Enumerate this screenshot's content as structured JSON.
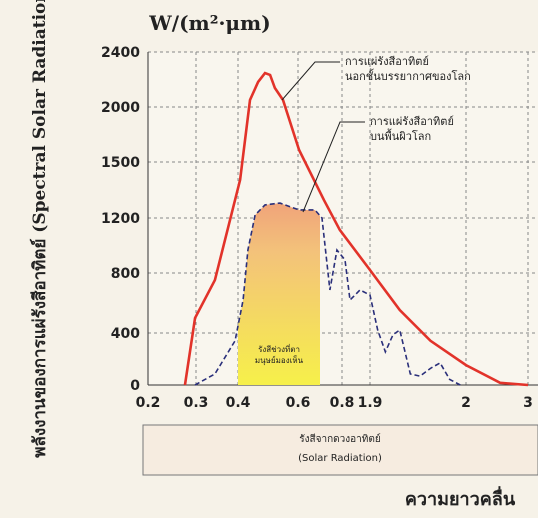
{
  "chart_data": {
    "type": "line",
    "unit_label": "W/(m²·μm)",
    "y_label": "พลังงานของการแผ่รังสีอาทิตย์ (Spectral Solar Radiation)",
    "x_label": "ความยาวคลื่น",
    "xlim": [
      0.2,
      3
    ],
    "ylim": [
      0,
      2400
    ],
    "xticks": [
      0.2,
      0.3,
      0.4,
      0.6,
      0.8,
      1.9,
      2,
      3
    ],
    "yticks": [
      0,
      400,
      800,
      1200,
      1500,
      2000,
      2400
    ],
    "grid": true,
    "visible_band": {
      "label": "รังสีช่วงที่ตา มนุษย์มองเห็น",
      "range": [
        0.4,
        0.7
      ]
    },
    "annotations": [
      "การแผ่รังสีอาทิตย์ นอกชั้นบรรยากาศของโลก",
      "การแผ่รังสีอาทิตย์ บนพื้นผิวโลก"
    ],
    "footer": [
      "รังสีจากดวงอาทิตย์",
      "(Solar Radiation)"
    ],
    "series": [
      {
        "name": "การแผ่รังสีอาทิตย์ นอกชั้นบรรยากาศของโลก",
        "color": "#e2332a",
        "dash": false,
        "x": [
          0.277,
          0.298,
          0.345,
          0.407,
          0.44,
          0.467,
          0.49,
          0.507,
          0.523,
          0.55,
          0.605,
          0.718,
          0.79,
          1.9,
          1.931,
          1.963,
          2,
          2.55,
          3
        ],
        "values": [
          0,
          500,
          753,
          1404,
          2051,
          2182,
          2247,
          2233,
          2138,
          2051,
          1609,
          1296,
          1113,
          822,
          553,
          340,
          153,
          17,
          0
        ]
      },
      {
        "name": "การแผ่รังสีอาทิตย์ บนพื้นผิวโลก",
        "color": "#2a2f7a",
        "dash": true,
        "x": [
          0.298,
          0.345,
          0.393,
          0.417,
          0.433,
          0.457,
          0.49,
          0.54,
          0.605,
          0.677,
          0.709,
          0.745,
          0.777,
          0.918,
          1.114,
          1.507,
          1.9,
          1.908,
          1.916,
          1.924,
          1.931,
          1.942,
          1.952,
          1.963,
          1.973,
          1.983,
          1.994
        ],
        "values": [
          0,
          85,
          340,
          620,
          967,
          1216,
          1270,
          1280,
          1243,
          1243,
          1200,
          687,
          967,
          895,
          620,
          687,
          653,
          420,
          255,
          387,
          420,
          85,
          68,
          128,
          170,
          43,
          0
        ]
      }
    ]
  }
}
